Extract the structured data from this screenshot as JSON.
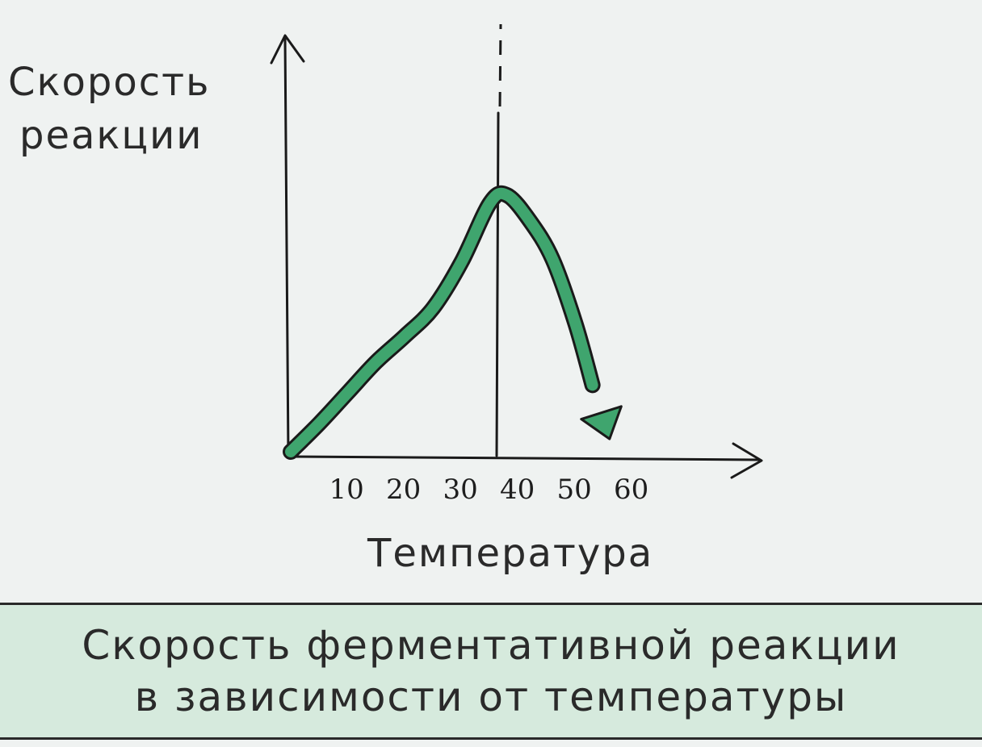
{
  "chart_data": {
    "type": "line",
    "ylabel_lines": [
      "Скорость",
      "реакции"
    ],
    "xlabel": "Температура",
    "x_ticks": [
      10,
      20,
      30,
      40,
      50,
      60
    ],
    "x": [
      0,
      5,
      10,
      15,
      20,
      25,
      30,
      35,
      38,
      42,
      46,
      50,
      53,
      56
    ],
    "y": [
      0,
      0.11,
      0.23,
      0.35,
      0.45,
      0.56,
      0.74,
      0.97,
      1.0,
      0.9,
      0.75,
      0.5,
      0.26,
      0.05
    ],
    "optimum_x": 38,
    "grid": false,
    "legend": "none",
    "colors": {
      "curve": "#3fa56e",
      "curve_outline": "#1a1a1a",
      "axes": "#1a1a1a",
      "caption_bg": "#d6eadd"
    }
  },
  "caption": {
    "line1": "Скорость ферментативной реакции",
    "line2": "в зависимости от температуры"
  }
}
